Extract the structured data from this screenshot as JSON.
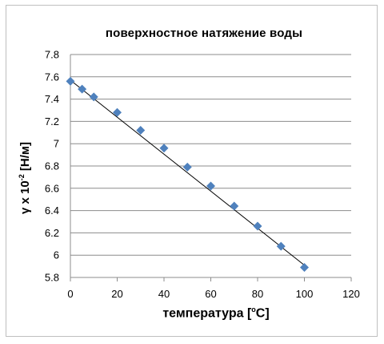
{
  "chart_data": {
    "type": "scatter",
    "title": "поверхностное натяжение воды",
    "xlabel": {
      "main": "температура [",
      "sup": "o",
      "tail": "C]"
    },
    "ylabel": {
      "main": "γ x 10",
      "sup": "-2",
      "tail": " [Н/м]"
    },
    "xlim": [
      0,
      120
    ],
    "ylim": [
      5.8,
      7.8
    ],
    "x_ticks": [
      "0",
      "20",
      "40",
      "60",
      "80",
      "100",
      "120"
    ],
    "y_ticks": [
      "7.8",
      "7.6",
      "7.4",
      "7.2",
      "7",
      "6.8",
      "6.6",
      "6.4",
      "6.2",
      "6",
      "5.8"
    ],
    "grid": "horizontal",
    "series": [
      {
        "marker": "diamond",
        "color": "#4f81bd",
        "points": [
          {
            "x": 0,
            "y": 7.56
          },
          {
            "x": 5,
            "y": 7.49
          },
          {
            "x": 10,
            "y": 7.42
          },
          {
            "x": 20,
            "y": 7.28
          },
          {
            "x": 30,
            "y": 7.12
          },
          {
            "x": 40,
            "y": 6.96
          },
          {
            "x": 50,
            "y": 6.79
          },
          {
            "x": 60,
            "y": 6.62
          },
          {
            "x": 70,
            "y": 6.44
          },
          {
            "x": 80,
            "y": 6.26
          },
          {
            "x": 90,
            "y": 6.08
          },
          {
            "x": 100,
            "y": 5.89
          }
        ]
      }
    ],
    "trendline": {
      "type": "linear",
      "color": "#000000",
      "from": {
        "x": 0,
        "y": 7.57
      },
      "to": {
        "x": 100,
        "y": 5.91
      }
    }
  }
}
